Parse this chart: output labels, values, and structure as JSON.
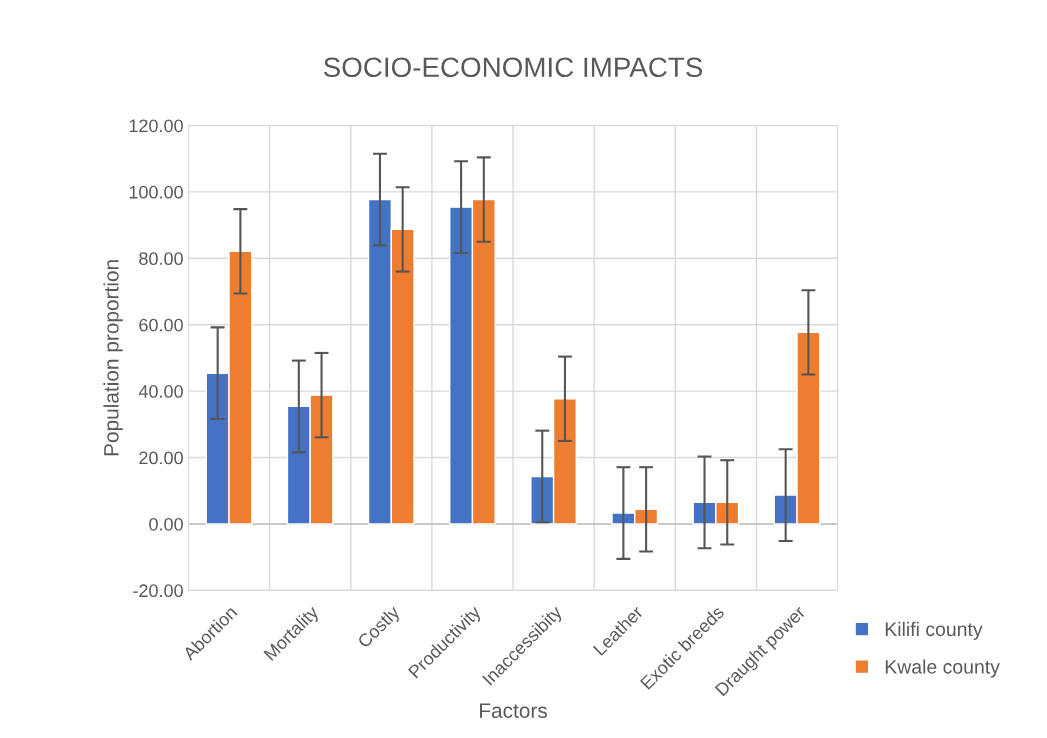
{
  "chart_data": {
    "type": "bar",
    "title": "SOCIO-ECONOMIC IMPACTS",
    "xlabel": "Factors",
    "ylabel": "Population proportion",
    "categories": [
      "Abortion",
      "Mortality",
      "Costly",
      "Productivity",
      "Inaccessibity",
      "Leather",
      "Exotic breeds",
      "Draught power"
    ],
    "series": [
      {
        "name": "Kilifi county",
        "color": "#4472c4",
        "values": [
          45.4,
          35.4,
          97.7,
          95.4,
          14.3,
          3.3,
          6.5,
          8.7
        ],
        "errors": [
          13.8,
          13.8,
          13.8,
          13.8,
          13.8,
          13.8,
          13.8,
          13.8
        ]
      },
      {
        "name": "Kwale county",
        "color": "#ed7d31",
        "values": [
          82.1,
          38.8,
          88.7,
          97.7,
          37.7,
          4.4,
          6.5,
          57.7
        ],
        "errors": [
          12.7,
          12.7,
          12.7,
          12.7,
          12.7,
          12.7,
          12.7,
          12.7
        ]
      }
    ],
    "ylim": [
      -20,
      120
    ],
    "yticks": [
      {
        "value": -20,
        "label": "-20.00"
      },
      {
        "value": 0,
        "label": "0.00"
      },
      {
        "value": 20,
        "label": "20.00"
      },
      {
        "value": 40,
        "label": "40.00"
      },
      {
        "value": 60,
        "label": "60.00"
      },
      {
        "value": 80,
        "label": "80.00"
      },
      {
        "value": 100,
        "label": "100.00"
      },
      {
        "value": 120,
        "label": "120.00"
      }
    ],
    "grid": true,
    "legend": "bottom right"
  }
}
